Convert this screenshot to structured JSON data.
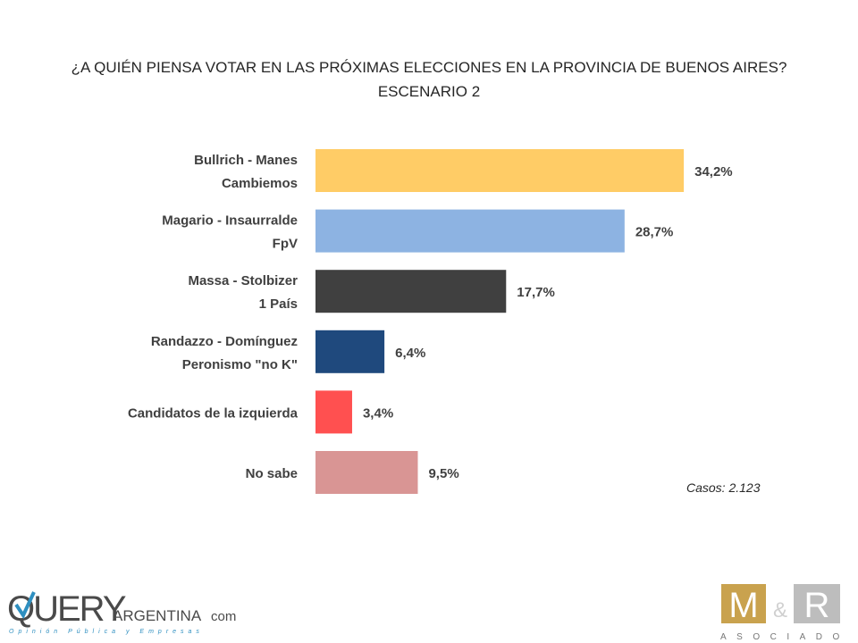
{
  "title_line1": "¿A QUIÉN PIENSA VOTAR EN LAS PRÓXIMAS ELECCIONES EN LA PROVINCIA DE BUENOS AIRES?",
  "title_line2": "ESCENARIO 2",
  "casos": "Casos: 2.123",
  "chart_data": {
    "type": "bar",
    "orientation": "horizontal",
    "title": "¿A QUIÉN PIENSA VOTAR EN LAS PRÓXIMAS ELECCIONES EN LA PROVINCIA DE BUENOS AIRES? ESCENARIO 2",
    "categories": [
      [
        "Bullrich - Manes",
        "Cambiemos"
      ],
      [
        "Magario - Insaurralde",
        "FpV"
      ],
      [
        "Massa - Stolbizer",
        "1 País"
      ],
      [
        "Randazzo - Domínguez",
        "Peronismo \"no K\""
      ],
      [
        "Candidatos de la izquierda"
      ],
      [
        "No sabe"
      ]
    ],
    "values": [
      34.2,
      28.7,
      17.7,
      6.4,
      3.4,
      9.5
    ],
    "data_labels": [
      "34,2%",
      "28,7%",
      "17,7%",
      "6,4%",
      "3,4%",
      "9,5%"
    ],
    "colors": [
      "#FFCC66",
      "#8DB3E2",
      "#404040",
      "#1F497D",
      "#FF5050",
      "#D99594"
    ],
    "grid": false,
    "legend": "none"
  },
  "logos": {
    "query": {
      "main": "QUERY",
      "sub": "ARGENTINA",
      "com": "com",
      "tagline": "Opinión Pública y Empresas"
    },
    "mr": {
      "m": "M",
      "amp": "&",
      "r": "R",
      "sub": "ASOCIADOS"
    }
  }
}
